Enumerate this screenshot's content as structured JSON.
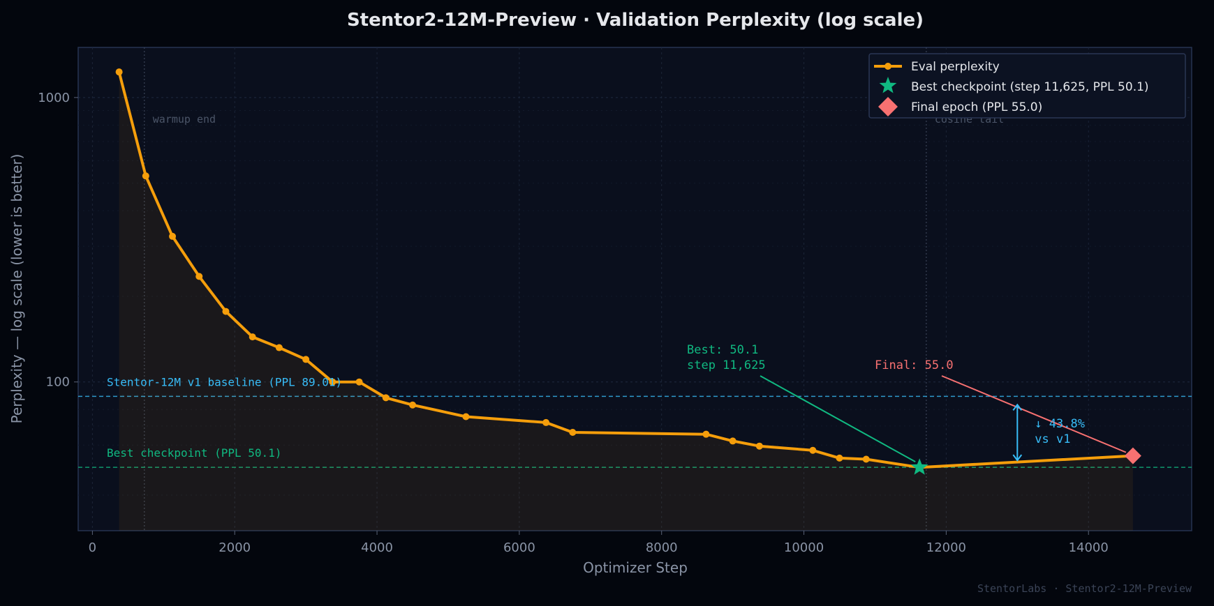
{
  "chart_data": {
    "type": "line",
    "title": "Stentor2-12M-Preview · Validation Perplexity  (log scale)",
    "xlabel": "Optimizer Step",
    "ylabel": "Perplexity — log scale  (lower is better)",
    "yscale": "log",
    "xlim": [
      -200,
      15450
    ],
    "ylim": [
      30,
      1500
    ],
    "x_ticks": [
      0,
      2000,
      4000,
      6000,
      8000,
      10000,
      12000,
      14000
    ],
    "y_ticks": [
      100,
      1000
    ],
    "grid": true,
    "legend_position": "top-right",
    "series": [
      {
        "name": "Eval perplexity",
        "color": "#f59e0b",
        "points": [
          [
            375,
            1230
          ],
          [
            750,
            530
          ],
          [
            1125,
            325
          ],
          [
            1500,
            235
          ],
          [
            1875,
            177
          ],
          [
            2250,
            144
          ],
          [
            2625,
            132
          ],
          [
            3000,
            120
          ],
          [
            3375,
            100
          ],
          [
            3750,
            100
          ],
          [
            4125,
            88
          ],
          [
            4500,
            83
          ],
          [
            5250,
            75.5
          ],
          [
            6375,
            72
          ],
          [
            6750,
            66.5
          ],
          [
            8625,
            65.5
          ],
          [
            9000,
            62
          ],
          [
            9375,
            59.5
          ],
          [
            10125,
            57.5
          ],
          [
            10500,
            54
          ],
          [
            10875,
            53.5
          ],
          [
            11625,
            50.1
          ],
          [
            14625,
            55.0
          ]
        ]
      }
    ],
    "reference_lines": [
      {
        "label": "Stentor-12M v1 baseline  (PPL 89.01)",
        "y": 89.01,
        "color": "#38bdf8"
      },
      {
        "label": "Best checkpoint  (PPL 50.1)",
        "y": 50.1,
        "color": "#10b981"
      }
    ],
    "phase_markers": [
      {
        "label": "warmup end",
        "x": 730
      },
      {
        "label": "cosine tail",
        "x": 11720
      }
    ],
    "best_point": {
      "legend": "Best checkpoint  (step 11,625, PPL 50.1)",
      "x": 11625,
      "y": 50.1,
      "color": "#10b981"
    },
    "final_point": {
      "legend": "Final epoch  (PPL 55.0)",
      "x": 14625,
      "y": 55.0,
      "color": "#f87171"
    },
    "annotations": {
      "best_line1": "Best: 50.1",
      "best_line2": "step 11,625",
      "final": "Final: 55.0",
      "improvement_line1": "↓ 43.8%",
      "improvement_line2": "vs v1"
    },
    "watermark": "StentorLabs · Stentor2-12M-Preview"
  }
}
